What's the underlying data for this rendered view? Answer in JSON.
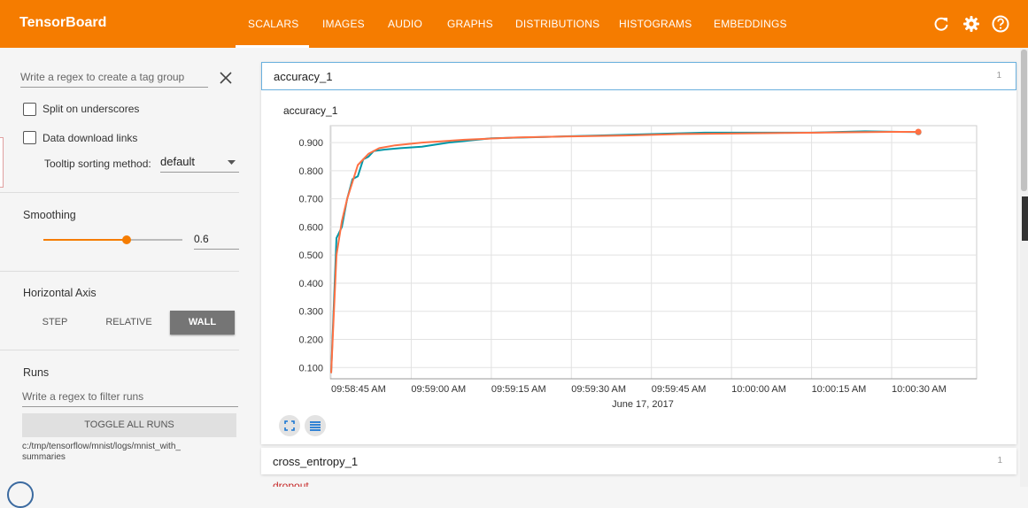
{
  "header": {
    "app_title": "TensorBoard",
    "tabs": [
      {
        "label": "SCALARS",
        "active": true
      },
      {
        "label": "IMAGES"
      },
      {
        "label": "AUDIO"
      },
      {
        "label": "GRAPHS"
      },
      {
        "label": "DISTRIBUTIONS"
      },
      {
        "label": "HISTOGRAMS"
      },
      {
        "label": "EMBEDDINGS"
      }
    ],
    "icons": [
      "refresh-icon",
      "settings-icon",
      "help-icon"
    ],
    "bar_color": "#f57c00"
  },
  "sidebar": {
    "tag_regex_placeholder": "Write a regex to create a tag group",
    "split_underscores_label": "Split on underscores",
    "split_underscores_checked": false,
    "data_download_label": "Data download links",
    "data_download_checked": false,
    "tooltip_sort_label": "Tooltip sorting method:",
    "tooltip_sort_value": "default",
    "smoothing_label": "Smoothing",
    "smoothing_value": "0.6",
    "smoothing_level": 0.6,
    "horizontal_axis_label": "Horizontal Axis",
    "axis_buttons": [
      "STEP",
      "RELATIVE",
      "WALL"
    ],
    "axis_selected": "WALL",
    "runs_label": "Runs",
    "runs_regex_placeholder": "Write a regex to filter runs",
    "toggle_all_runs": "TOGGLE ALL RUNS",
    "run_path": "c:/tmp/tensorflow/mnist/logs/mnist_with_summaries",
    "run_path_line1": "c:/tmp/tensorflow/mnist/logs/mnist_with_",
    "run_path_line2": "summaries"
  },
  "main": {
    "card1_title": "accuracy_1",
    "card1_count": "1",
    "card2_title": "cross_entropy_1",
    "card2_count": "1",
    "card3_title": "dropout"
  },
  "chart_data": {
    "type": "line",
    "title": "accuracy_1",
    "xlabel": "June 17, 2017",
    "x_ticks": [
      "09:58:45 AM",
      "09:59:00 AM",
      "09:59:15 AM",
      "09:59:30 AM",
      "09:59:45 AM",
      "10:00:00 AM",
      "10:00:15 AM",
      "10:00:30 AM"
    ],
    "y_ticks": [
      "0.900",
      "0.800",
      "0.700",
      "0.600",
      "0.500",
      "0.400",
      "0.300",
      "0.200",
      "0.100"
    ],
    "ylim": [
      0.06,
      0.96
    ],
    "grid": true,
    "series_colors": [
      "#0097a7",
      "#ff7043"
    ],
    "series": [
      {
        "role": "smoothed-run",
        "color": "#0097a7",
        "x": [
          "09:58:45 AM",
          "09:58:46 AM",
          "09:58:47 AM",
          "09:58:48 AM",
          "09:58:49 AM",
          "09:58:50 AM",
          "09:58:51 AM",
          "09:58:52 AM",
          "09:58:53 AM",
          "09:58:55 AM",
          "09:58:58 AM",
          "09:59:02 AM",
          "09:59:07 AM",
          "09:59:15 AM",
          "09:59:25 AM",
          "09:59:35 AM",
          "09:59:45 AM",
          "09:59:55 AM",
          "10:00:05 AM",
          "10:00:15 AM",
          "10:00:25 AM",
          "10:00:35 AM"
        ],
        "values": [
          0.08,
          0.56,
          0.6,
          0.7,
          0.77,
          0.78,
          0.84,
          0.85,
          0.87,
          0.875,
          0.88,
          0.885,
          0.9,
          0.915,
          0.92,
          0.925,
          0.93,
          0.935,
          0.935,
          0.935,
          0.94,
          0.937
        ]
      },
      {
        "role": "smoothed-run-2",
        "color": "#ff7043",
        "x": [
          "09:58:45 AM",
          "09:58:46 AM",
          "09:58:47 AM",
          "09:58:48 AM",
          "09:58:49 AM",
          "09:58:50 AM",
          "09:58:52 AM",
          "09:58:54 AM",
          "09:58:57 AM",
          "09:59:02 AM",
          "09:59:10 AM",
          "09:59:20 AM",
          "09:59:30 AM",
          "09:59:40 AM",
          "09:59:50 AM",
          "10:00:00 AM",
          "10:00:10 AM",
          "10:00:20 AM",
          "10:00:30 AM",
          "10:00:35 AM"
        ],
        "values": [
          0.08,
          0.5,
          0.62,
          0.7,
          0.76,
          0.82,
          0.86,
          0.88,
          0.89,
          0.9,
          0.91,
          0.918,
          0.922,
          0.925,
          0.93,
          0.932,
          0.934,
          0.936,
          0.938,
          0.938
        ]
      }
    ]
  }
}
